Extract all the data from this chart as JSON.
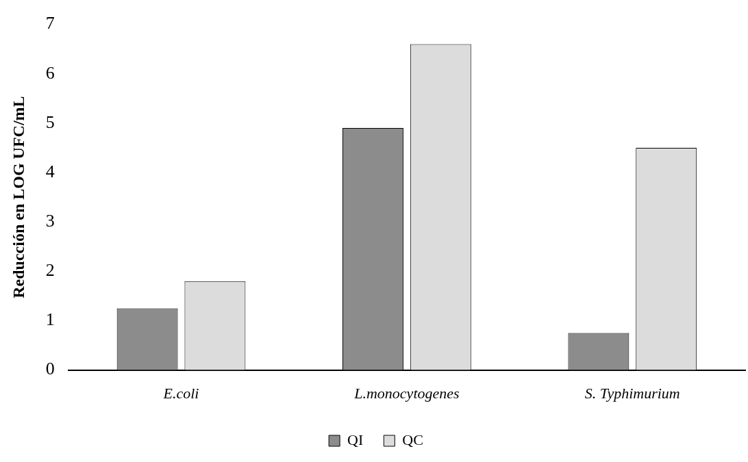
{
  "chart_data": {
    "type": "bar",
    "ylabel": "Reducción en LOG UFC/mL",
    "categories": [
      "E.coli",
      "L.monocytogenes",
      "S. Typhimurium"
    ],
    "series": [
      {
        "name": "QI",
        "color": "#8c8c8c",
        "values": [
          1.25,
          4.9,
          0.75
        ]
      },
      {
        "name": "QC",
        "color": "#dcdcdc",
        "values": [
          1.8,
          6.6,
          4.5
        ]
      }
    ],
    "ylim": [
      0,
      7
    ],
    "yticks": [
      0,
      1,
      2,
      3,
      4,
      5,
      6,
      7
    ],
    "grid": false,
    "legend": "bottom"
  }
}
